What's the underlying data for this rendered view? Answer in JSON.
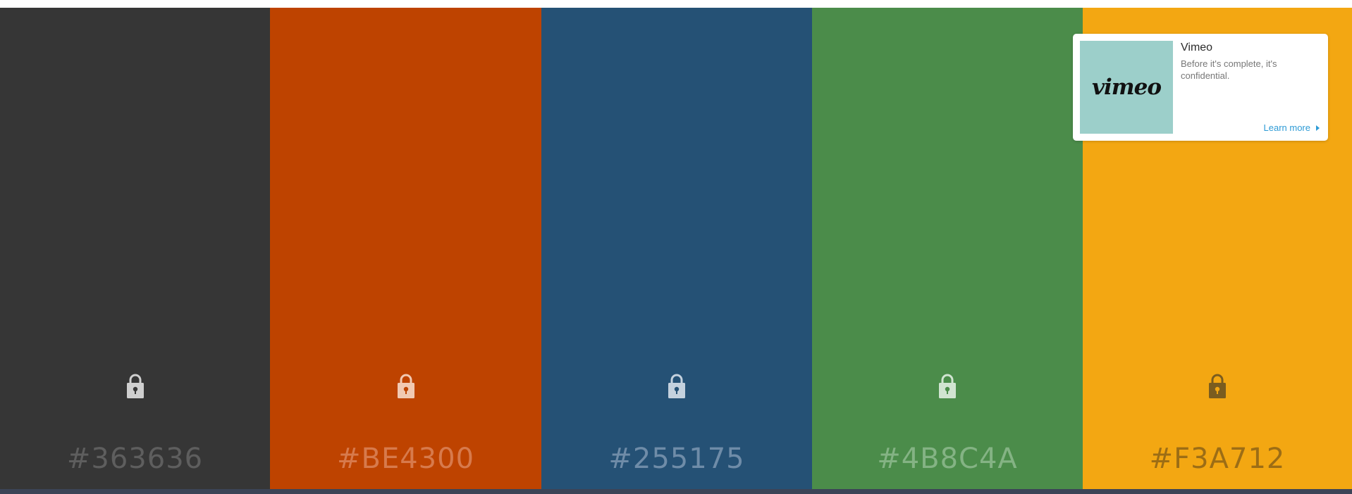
{
  "palette": {
    "colors": [
      {
        "hex": "#363636",
        "text_color": "#5e5e5e",
        "lock_color": "#cfcfcf",
        "keyhole_color": "#363636"
      },
      {
        "hex": "#BE4300",
        "text_color": "#d77a4c",
        "lock_color": "#f1c9b2",
        "keyhole_color": "#BE4300"
      },
      {
        "hex": "#255175",
        "text_color": "#6f8ca8",
        "lock_color": "#c4d1de",
        "keyhole_color": "#255175"
      },
      {
        "hex": "#4B8C4A",
        "text_color": "#84b384",
        "lock_color": "#d1e4d1",
        "keyhole_color": "#4B8C4A"
      },
      {
        "hex": "#F3A712",
        "text_color": "#9c6d15",
        "lock_color": "#7a5c1f",
        "keyhole_color": "#F3A712"
      }
    ]
  },
  "ad": {
    "logo_text": "vimeo",
    "logo_bg": "#9ccfca",
    "title": "Vimeo",
    "description": "Before it's complete, it's confidential.",
    "link_label": "Learn more"
  },
  "icons": {
    "lock": "lock-icon",
    "link_arrow": "chevron-right-icon"
  }
}
